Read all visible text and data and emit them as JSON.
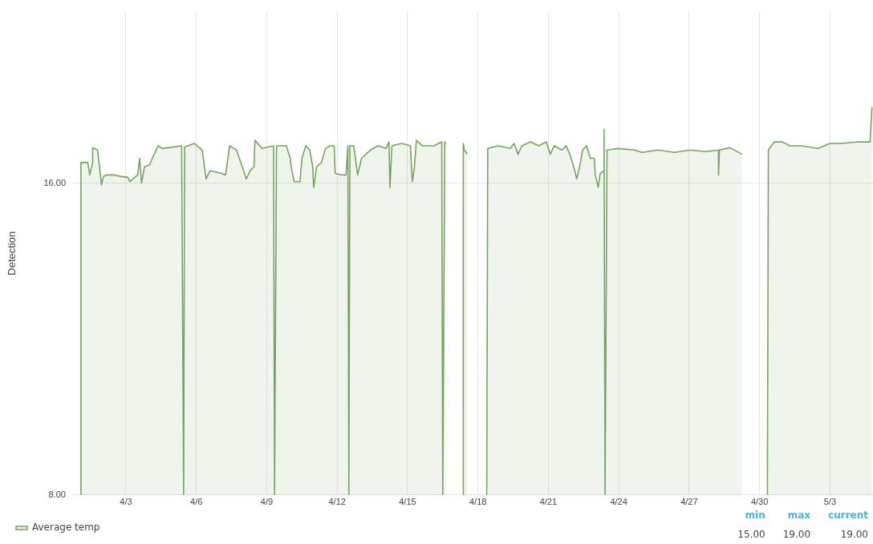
{
  "chart_data": {
    "type": "area",
    "ylabel": "Detection",
    "legend": "bottom left",
    "grid": true,
    "marker": "none",
    "xlim": [
      "--03-31T22:00",
      "--05-04T20:00"
    ],
    "ylim": [
      8,
      20.4
    ],
    "xticks": [
      {
        "value": "--04-03",
        "label": "4/3"
      },
      {
        "value": "--04-06",
        "label": "4/6"
      },
      {
        "value": "--04-09",
        "label": "4/9"
      },
      {
        "value": "--04-12",
        "label": "4/12"
      },
      {
        "value": "--04-15",
        "label": "4/15"
      },
      {
        "value": "--04-18",
        "label": "4/18"
      },
      {
        "value": "--04-21",
        "label": "4/21"
      },
      {
        "value": "--04-24",
        "label": "4/24"
      },
      {
        "value": "--04-27",
        "label": "4/27"
      },
      {
        "value": "--04-30",
        "label": "4/30"
      },
      {
        "value": "--05-03",
        "label": "5/3"
      }
    ],
    "yticks": [
      {
        "value": 8,
        "label": "8.00"
      },
      {
        "value": 16,
        "label": "16.00"
      }
    ],
    "annotations": [
      "min",
      "max",
      "current",
      "15.00",
      "19.00",
      "19.00"
    ],
    "series": [
      {
        "name": "Average temp",
        "color": "#73a65f",
        "x": [
          "--04-01T02:00",
          "--04-01T02:00",
          "--04-01T09:00",
          "--04-01T11:00",
          "--04-01T14:00",
          "--04-01T14:00",
          "--04-01T19:00",
          "--04-01T21:00",
          "--04-01T23:00",
          "--04-02T01:00",
          "--04-02T04:00",
          "--04-02T12:00",
          "--04-02T20:00",
          "--04-03T02:00",
          "--04-03T04:00",
          "--04-03T12:00",
          "--04-03T14:00",
          "--04-03T16:00",
          "--04-03T19:00",
          "--04-04T00:00",
          "--04-04T09:00",
          "--04-04T13:00",
          "--04-05T01:00",
          "--04-05T09:00",
          "--04-05T11:00",
          "--04-05T12:00",
          "--04-05T22:00",
          "--04-06T06:00",
          "--04-06T10:00",
          "--04-06T14:00",
          "--04-07T02:00",
          "--04-07T06:00",
          "--04-07T10:00",
          "--04-07T17:00",
          "--04-07T23:00",
          "--04-08T03:00",
          "--04-08T07:00",
          "--04-08T11:00",
          "--04-08T12:00",
          "--04-08T19:00",
          "--04-09T07:00",
          "--04-09T08:00",
          "--04-09T10:00",
          "--04-09T20:00",
          "--04-10T00:00",
          "--04-10T01:00",
          "--04-10T04:00",
          "--04-10T10:00",
          "--04-10T12:00",
          "--04-10T16:00",
          "--04-10T20:00",
          "--04-10T23:00",
          "--04-11T00:00",
          "--04-11T03:00",
          "--04-11T08:00",
          "--04-11T12:00",
          "--04-11T17:00",
          "--04-11T21:00",
          "--04-11T22:00",
          "--04-12T05:00",
          "--04-12T09:00",
          "--04-12T11:00",
          "--04-12T12:00",
          "--04-12T13:00",
          "--04-12T17:00",
          "--04-12T21:00",
          "--04-13T01:00",
          "--04-13T10:00",
          "--04-13T18:00",
          "--04-14T02:00",
          "--04-14T05:00",
          "--04-14T06:00",
          "--04-14T08:00",
          "--04-14T18:00",
          "--04-15T03:00",
          "--04-15T04:00",
          "--04-15T05:00",
          "--04-15T07:00",
          "--04-15T09:00",
          "--04-15T15:00",
          "--04-16T03:00",
          "--04-16T11:00",
          "--04-16T12:00",
          "--04-16T14:00",
          "--04-16T15:00",
          "--04-17T00:00",
          "--04-17T09:00",
          "--04-17T09:00",
          "--04-17T10:00",
          "--04-17T12:00",
          "--04-17T13:00",
          "--04-18T00:00",
          "--04-18T08:00",
          "--04-18T09:00",
          "--04-18T10:00",
          "--04-18T21:00",
          "--04-19T09:00",
          "--04-19T13:00",
          "--04-19T17:00",
          "--04-19T21:00",
          "--04-20T06:00",
          "--04-20T14:00",
          "--04-20T22:00",
          "--04-21T02:00",
          "--04-21T06:00",
          "--04-21T14:00",
          "--04-21T18:00",
          "--04-21T22:00",
          "--04-22T02:00",
          "--04-22T05:00",
          "--04-22T08:00",
          "--04-22T11:00",
          "--04-22T15:00",
          "--04-22T19:00",
          "--04-22T23:00",
          "--04-23T00:00",
          "--04-23T03:00",
          "--04-23T05:00",
          "--04-23T09:00",
          "--04-23T09:00",
          "--04-23T10:00",
          "--04-23T12:00",
          "--04-23T23:00",
          "--04-24T16:00",
          "--04-25T00:00",
          "--04-25T16:00",
          "--04-26T09:00",
          "--04-27T01:00",
          "--04-27T17:00",
          "--04-28T06:00",
          "--04-28T06:00",
          "--04-28T07:00",
          "--04-28T18:00",
          "--04-29T06:00",
          "--04-29T19:00",
          "--04-30T08:00",
          "--04-30T09:00",
          "--04-30T15:00",
          "--04-30T23:00",
          "--05-01T07:00",
          "--05-01T19:00",
          "--05-02T12:00",
          "--05-03T00:00",
          "--05-03T12:00",
          "--05-04T05:00",
          "--05-04T17:00",
          "--05-04T19:00"
        ],
        "values": [
          8,
          16.53,
          16.53,
          16.21,
          16.53,
          16.91,
          16.85,
          16.42,
          15.96,
          16.17,
          16.21,
          16.21,
          16.17,
          16.15,
          16.04,
          16.21,
          16.64,
          16.0,
          16.42,
          16.47,
          16.96,
          16.89,
          16.93,
          16.96,
          8,
          16.93,
          17.02,
          16.85,
          16.11,
          16.32,
          16.25,
          16.21,
          16.96,
          16.85,
          16.42,
          16.11,
          16.32,
          16.42,
          17.1,
          16.89,
          16.96,
          8,
          16.96,
          16.96,
          16.64,
          16.42,
          16.04,
          16.04,
          16.64,
          16.96,
          16.85,
          16.42,
          15.89,
          16.42,
          16.53,
          16.89,
          16.96,
          16.96,
          16.25,
          16.21,
          16.21,
          16.96,
          8,
          16.96,
          16.96,
          16.21,
          16.64,
          16.85,
          16.96,
          16.89,
          17.06,
          15.89,
          16.96,
          17.02,
          16.96,
          16.42,
          16.04,
          16.42,
          17.1,
          16.96,
          16.96,
          17.06,
          8,
          17.06,
          17.0,
          null,
          8,
          17.02,
          16.85,
          16.79,
          16.74,
          null,
          8,
          8,
          16.89,
          16.96,
          16.89,
          17.02,
          16.74,
          16.96,
          17.06,
          16.96,
          17.06,
          16.74,
          16.96,
          16.85,
          16.96,
          16.74,
          16.42,
          16.11,
          16.42,
          16.85,
          16.96,
          16.64,
          16.64,
          16.21,
          15.89,
          16.25,
          16.32,
          17.38,
          8,
          16.85,
          16.89,
          16.85,
          16.79,
          16.85,
          16.79,
          16.85,
          16.81,
          16.85,
          16.21,
          16.85,
          16.91,
          16.74,
          null,
          8,
          16.85,
          17.06,
          17.06,
          16.96,
          16.96,
          16.89,
          17.02,
          17.02,
          17.06,
          17.06,
          17.95
        ]
      }
    ]
  }
}
